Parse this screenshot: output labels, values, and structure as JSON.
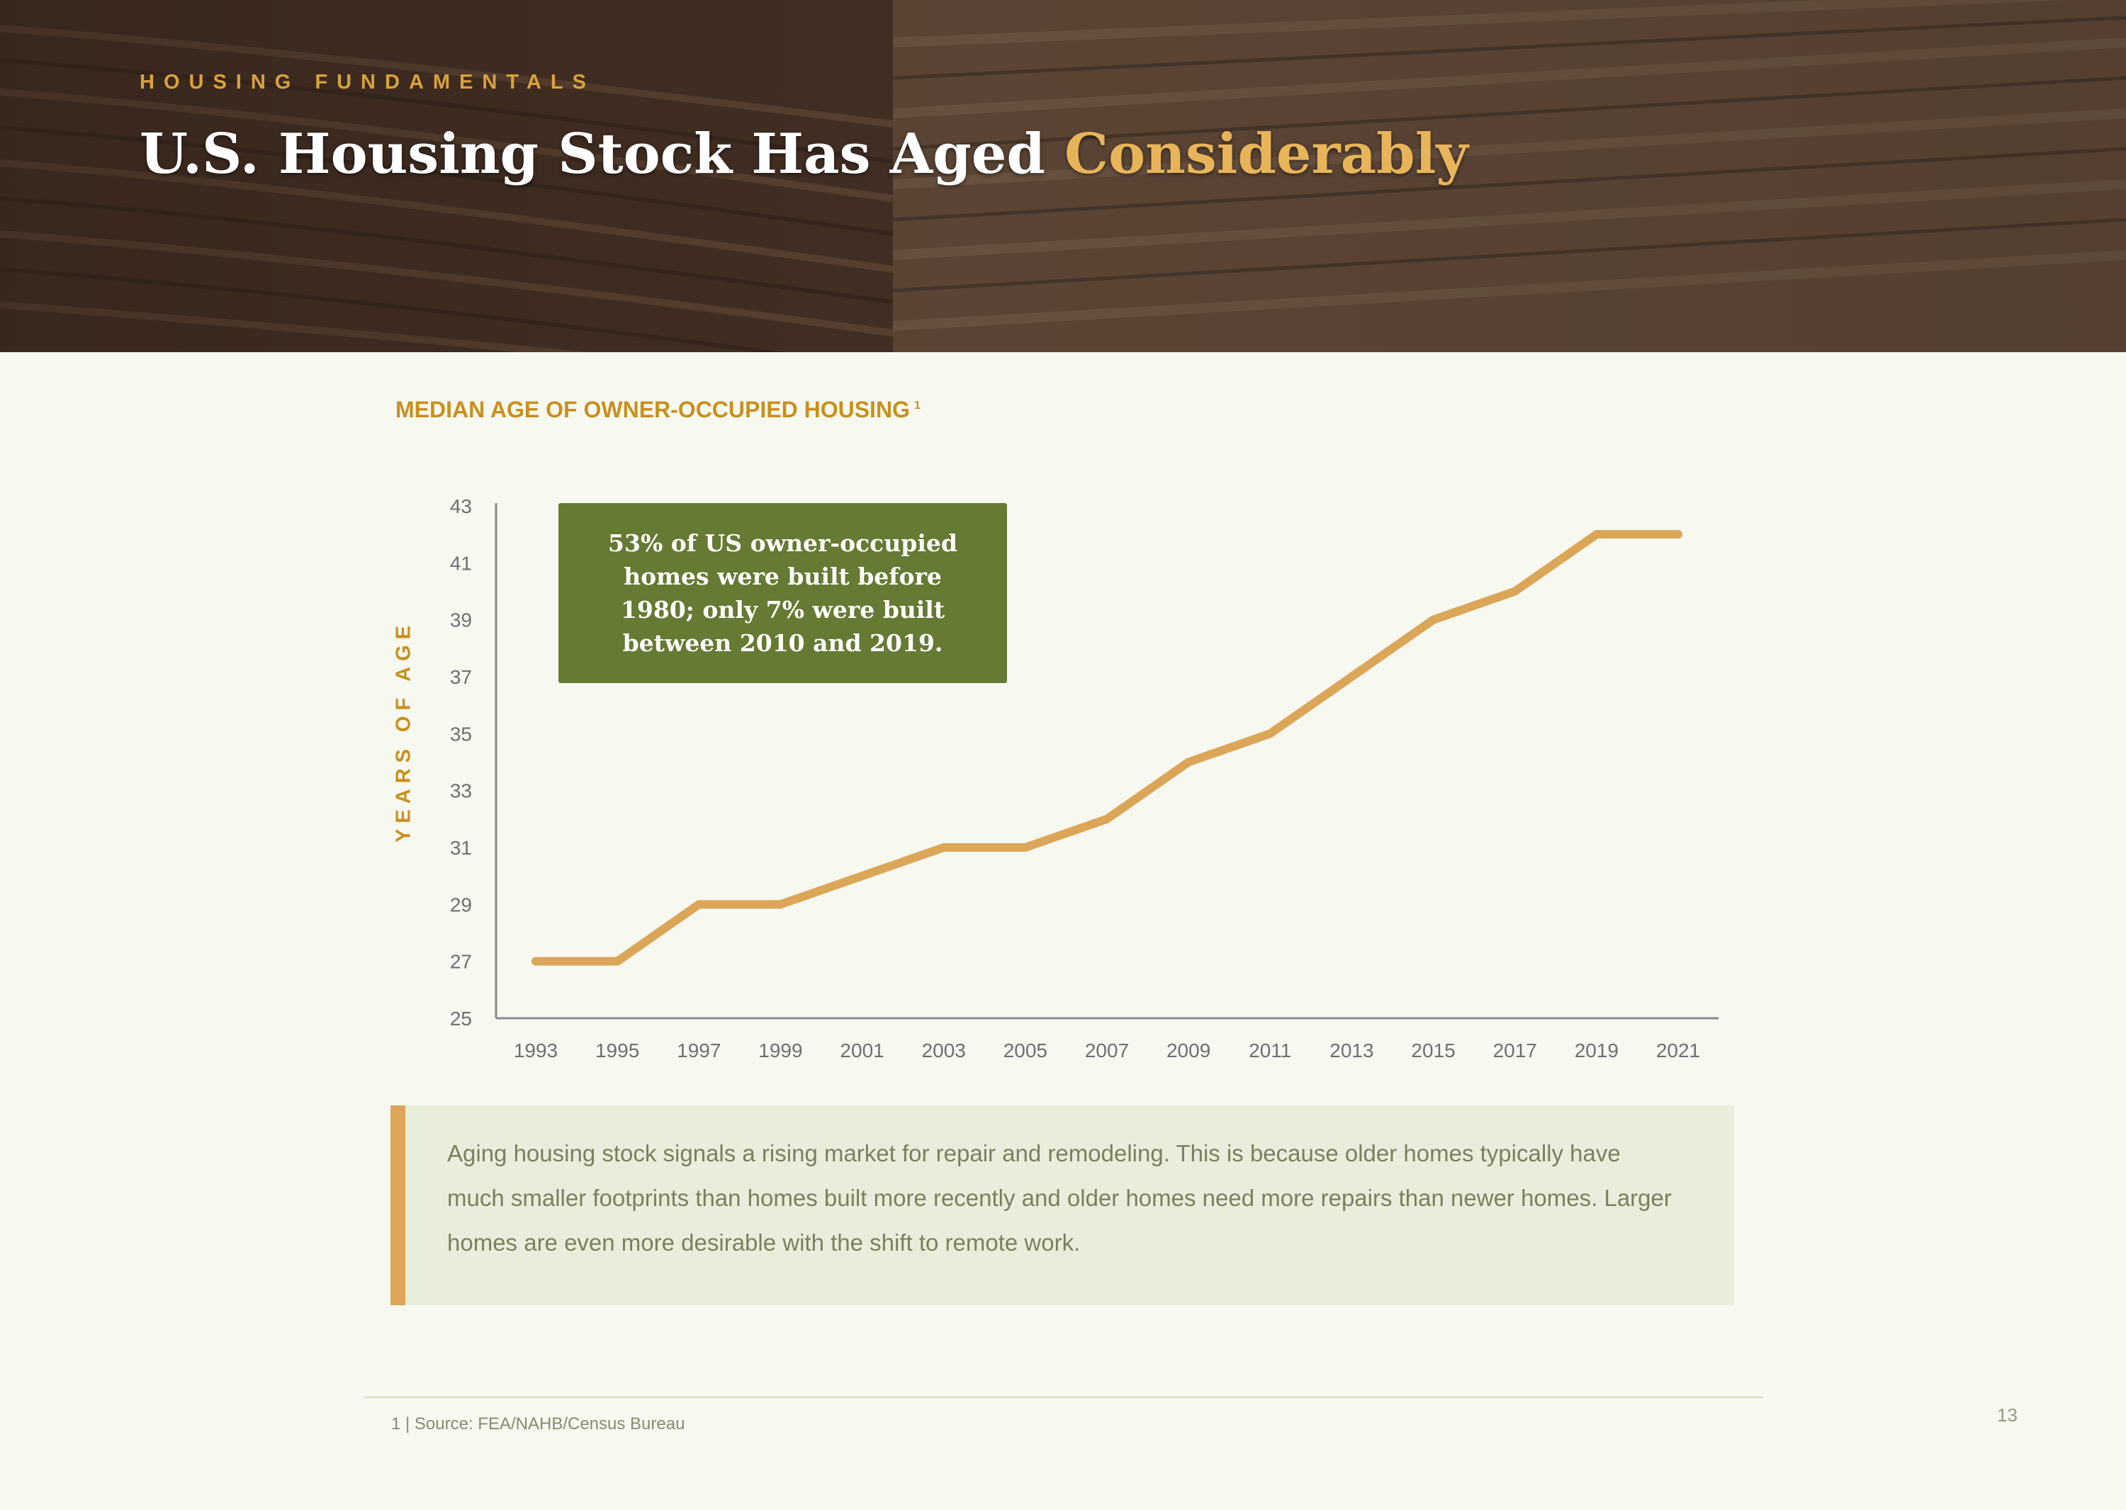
{
  "header": {
    "eyebrow": "HOUSING FUNDAMENTALS",
    "title_part1": "U.S. Housing Stock Has Aged ",
    "title_highlight": "Considerably"
  },
  "callout": {
    "text": "53% of US owner-occupied homes were built before 1980; only 7% were built between 2010 and 2019."
  },
  "note": {
    "text": "Aging housing stock signals a rising market for repair and remodeling. This is because older homes typically have much smaller footprints than homes built more recently and older homes need more repairs than newer homes. Larger homes are even more desirable with the shift to remote work."
  },
  "footnote": "1 | Source:  FEA/NAHB/Census Bureau",
  "page_number": "13",
  "colors": {
    "accent_gold": "#c8901e",
    "line": "#dba658",
    "callout_green": "#657a33",
    "note_bg": "#e8eedb"
  },
  "chart_data": {
    "type": "line",
    "title": "MEDIAN AGE OF OWNER-OCCUPIED HOUSING",
    "title_footnote": "1",
    "xlabel": "",
    "ylabel": "YEARS OF AGE",
    "x": [
      1993,
      1995,
      1997,
      1999,
      2001,
      2003,
      2005,
      2007,
      2009,
      2011,
      2013,
      2015,
      2017,
      2019,
      2021
    ],
    "xticks": [
      "1993",
      "1995",
      "1997",
      "1999",
      "2001",
      "2003",
      "2005",
      "2007",
      "2009",
      "2011",
      "2013",
      "2015",
      "2017",
      "2019",
      "2021"
    ],
    "series": [
      {
        "values": [
          27,
          27,
          29,
          29,
          30,
          31,
          31,
          32,
          34,
          35,
          37,
          39,
          40,
          42,
          42
        ],
        "color": "#dba658"
      }
    ],
    "yticks": [
      "25",
      "27",
      "29",
      "31",
      "33",
      "35",
      "37",
      "39",
      "41",
      "43"
    ],
    "ylim": [
      25,
      43
    ],
    "grid": false,
    "legend": "none"
  }
}
